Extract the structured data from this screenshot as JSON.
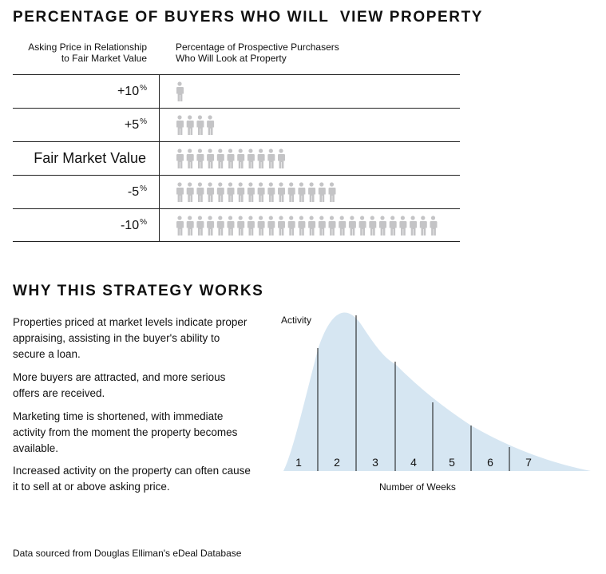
{
  "title": "PERCENTAGE OF BUYERS WHO WILL  VIEW PROPERTY",
  "column_headers": {
    "left": [
      "Asking Price in Relationship",
      "to Fair Market Value"
    ],
    "right": [
      "Percentage of Prospective Purchasers",
      "Who Will Look at Property"
    ]
  },
  "rows": [
    {
      "label": "+10",
      "sup": "%",
      "count": 1
    },
    {
      "label": "+5",
      "sup": "%",
      "count": 4
    },
    {
      "label": "Fair Market Value",
      "sup": "",
      "count": 11
    },
    {
      "label": "-5",
      "sup": "%",
      "count": 16
    },
    {
      "label": "-10",
      "sup": "%",
      "count": 26
    }
  ],
  "colors": {
    "person": "#c4c4c6",
    "curve_fill": "#d6e6f2",
    "ink": "#111111"
  },
  "section2": {
    "title": "WHY THIS STRATEGY WORKS",
    "paragraphs": [
      "Properties priced at market levels indicate proper appraising, assisting in the buyer's ability to secure a loan.",
      "More buyers are attracted, and more serious offers are received.",
      "Marketing time is shortened, with immediate activity from the moment the property becomes available.",
      "Increased activity on the property can often cause it to sell at or above asking price."
    ]
  },
  "chart_data": {
    "type": "area",
    "ylabel": "Activity",
    "xlabel": "Number of Weeks",
    "categories": [
      "1",
      "2",
      "3",
      "4",
      "5",
      "6",
      "7"
    ],
    "grid": false,
    "legend": "none"
  },
  "footer": "Data sourced from Douglas Elliman's eDeal Database"
}
